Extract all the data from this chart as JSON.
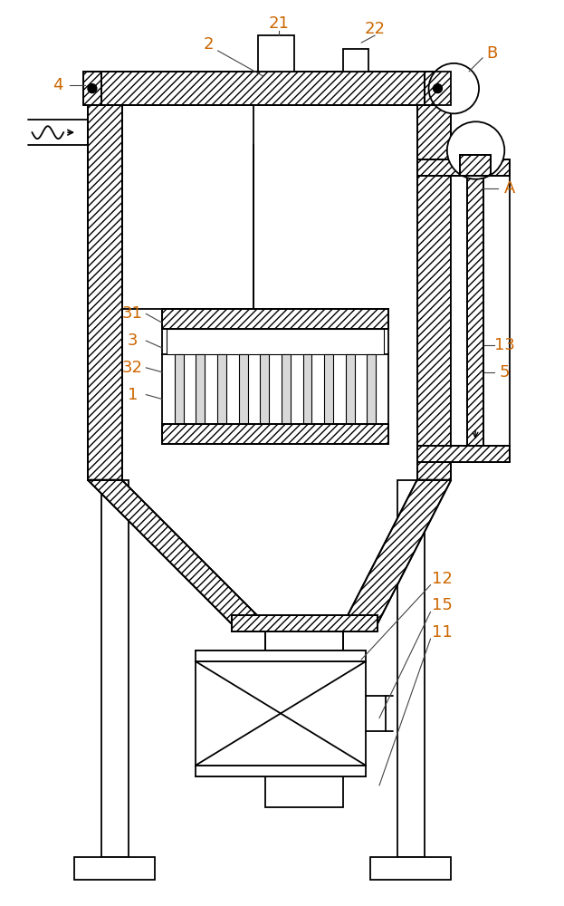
{
  "bg_color": "#ffffff",
  "line_color": "#000000",
  "label_color": "#cc6600",
  "fig_width": 6.23,
  "fig_height": 10.0
}
